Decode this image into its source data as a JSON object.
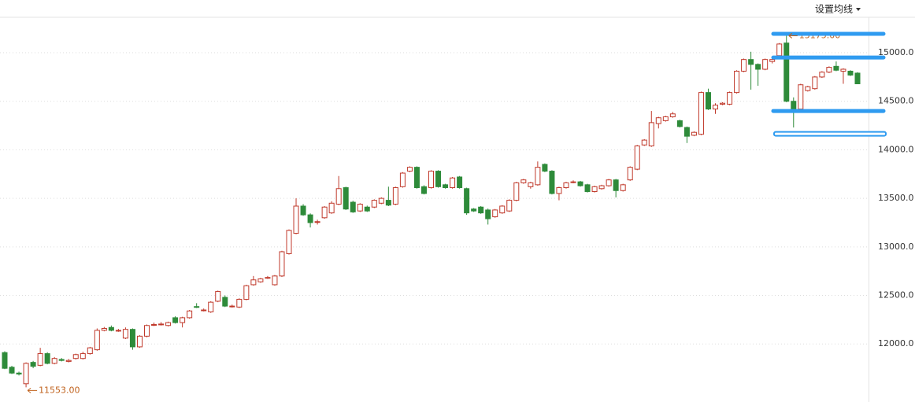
{
  "chart_data": {
    "type": "candlestick",
    "menu_button": "设置均线",
    "low_annotation": "11553.00",
    "high_annotation": "15175.00",
    "up_color": "#c0392b",
    "down_color": "#2e8b3a",
    "line_color": "#2f9bf0",
    "ylim": [
      11410,
      15365
    ],
    "yticks": [
      {
        "value": 12000,
        "label": "12000.0"
      },
      {
        "value": 12500,
        "label": "12500.0"
      },
      {
        "value": 13000,
        "label": "13000.0"
      },
      {
        "value": 13500,
        "label": "13500.0"
      },
      {
        "value": 14000,
        "label": "14000.0"
      },
      {
        "value": 14500,
        "label": "14500.0"
      },
      {
        "value": 15000,
        "label": "15000.0"
      }
    ],
    "grid": true,
    "drawn_lines": [
      15195,
      14951,
      14400,
      14165
    ],
    "ohlc": [
      [
        11911,
        11925,
        11740,
        11749
      ],
      [
        11760,
        11775,
        11690,
        11700
      ],
      [
        11700,
        11715,
        11675,
        11690
      ],
      [
        11590,
        11810,
        11553,
        11800
      ],
      [
        11810,
        11825,
        11750,
        11770
      ],
      [
        11780,
        11960,
        11770,
        11900
      ],
      [
        11900,
        11915,
        11790,
        11800
      ],
      [
        11800,
        11865,
        11790,
        11850
      ],
      [
        11840,
        11855,
        11820,
        11830
      ],
      [
        11820,
        11845,
        11810,
        11830
      ],
      [
        11850,
        11900,
        11840,
        11890
      ],
      [
        11850,
        11920,
        11840,
        11900
      ],
      [
        11900,
        11970,
        11890,
        11960
      ],
      [
        11940,
        12160,
        11930,
        12140
      ],
      [
        12140,
        12175,
        12130,
        12160
      ],
      [
        12170,
        12190,
        12130,
        12140
      ],
      [
        12140,
        12155,
        12125,
        12140
      ],
      [
        12060,
        12170,
        12050,
        12150
      ],
      [
        12150,
        12160,
        11940,
        11970
      ],
      [
        11970,
        12090,
        11960,
        12080
      ],
      [
        12080,
        12200,
        12070,
        12190
      ],
      [
        12200,
        12220,
        12185,
        12200
      ],
      [
        12205,
        12225,
        12190,
        12205
      ],
      [
        12190,
        12230,
        12180,
        12220
      ],
      [
        12270,
        12285,
        12210,
        12220
      ],
      [
        12220,
        12280,
        12170,
        12270
      ],
      [
        12270,
        12350,
        12260,
        12340
      ],
      [
        12385,
        12420,
        12370,
        12380
      ],
      [
        12350,
        12365,
        12335,
        12350
      ],
      [
        12330,
        12440,
        12320,
        12430
      ],
      [
        12440,
        12550,
        12430,
        12540
      ],
      [
        12480,
        12500,
        12380,
        12390
      ],
      [
        12385,
        12405,
        12375,
        12390
      ],
      [
        12380,
        12470,
        12370,
        12460
      ],
      [
        12460,
        12610,
        12450,
        12600
      ],
      [
        12610,
        12700,
        12600,
        12660
      ],
      [
        12640,
        12680,
        12630,
        12670
      ],
      [
        12680,
        12700,
        12670,
        12685
      ],
      [
        12610,
        12710,
        12600,
        12700
      ],
      [
        12700,
        12960,
        12690,
        12950
      ],
      [
        12930,
        13180,
        12920,
        13170
      ],
      [
        13140,
        13500,
        13130,
        13420
      ],
      [
        13420,
        13440,
        13320,
        13330
      ],
      [
        13330,
        13345,
        13200,
        13250
      ],
      [
        13260,
        13280,
        13230,
        13260
      ],
      [
        13300,
        13420,
        13290,
        13410
      ],
      [
        13350,
        13470,
        13340,
        13450
      ],
      [
        13440,
        13730,
        13430,
        13600
      ],
      [
        13610,
        13620,
        13380,
        13390
      ],
      [
        13460,
        13475,
        13350,
        13360
      ],
      [
        13370,
        13450,
        13360,
        13440
      ],
      [
        13410,
        13425,
        13360,
        13370
      ],
      [
        13410,
        13490,
        13400,
        13480
      ],
      [
        13450,
        13510,
        13440,
        13500
      ],
      [
        13480,
        13620,
        13420,
        13430
      ],
      [
        13440,
        13620,
        13430,
        13610
      ],
      [
        13620,
        13770,
        13610,
        13760
      ],
      [
        13780,
        13830,
        13770,
        13820
      ],
      [
        13820,
        13830,
        13600,
        13610
      ],
      [
        13620,
        13635,
        13540,
        13550
      ],
      [
        13610,
        13790,
        13600,
        13780
      ],
      [
        13780,
        13790,
        13610,
        13620
      ],
      [
        13640,
        13650,
        13600,
        13610
      ],
      [
        13610,
        13720,
        13600,
        13710
      ],
      [
        13720,
        13730,
        13600,
        13610
      ],
      [
        13600,
        13610,
        13330,
        13350
      ],
      [
        13390,
        13400,
        13360,
        13370
      ],
      [
        13410,
        13420,
        13340,
        13350
      ],
      [
        13380,
        13395,
        13230,
        13290
      ],
      [
        13310,
        13390,
        13300,
        13380
      ],
      [
        13350,
        13430,
        13340,
        13420
      ],
      [
        13370,
        13490,
        13360,
        13480
      ],
      [
        13480,
        13670,
        13470,
        13660
      ],
      [
        13660,
        13700,
        13650,
        13690
      ],
      [
        13620,
        13670,
        13600,
        13660
      ],
      [
        13640,
        13880,
        13630,
        13820
      ],
      [
        13850,
        13860,
        13770,
        13780
      ],
      [
        13780,
        13790,
        13540,
        13550
      ],
      [
        13550,
        13620,
        13480,
        13610
      ],
      [
        13610,
        13670,
        13600,
        13660
      ],
      [
        13670,
        13685,
        13655,
        13670
      ],
      [
        13670,
        13680,
        13620,
        13630
      ],
      [
        13640,
        13650,
        13560,
        13570
      ],
      [
        13570,
        13630,
        13560,
        13620
      ],
      [
        13600,
        13640,
        13590,
        13630
      ],
      [
        13630,
        13700,
        13620,
        13690
      ],
      [
        13690,
        13700,
        13510,
        13580
      ],
      [
        13580,
        13650,
        13570,
        13640
      ],
      [
        13690,
        13830,
        13680,
        13820
      ],
      [
        13800,
        14050,
        13790,
        14040
      ],
      [
        14050,
        14110,
        14040,
        14100
      ],
      [
        14040,
        14400,
        14030,
        14280
      ],
      [
        14270,
        14340,
        14220,
        14330
      ],
      [
        14300,
        14350,
        14290,
        14340
      ],
      [
        14340,
        14390,
        14330,
        14370
      ],
      [
        14300,
        14310,
        14230,
        14240
      ],
      [
        14230,
        14240,
        14070,
        14140
      ],
      [
        14150,
        14190,
        14140,
        14180
      ],
      [
        14160,
        14600,
        14150,
        14590
      ],
      [
        14590,
        14630,
        14410,
        14420
      ],
      [
        14420,
        14480,
        14370,
        14460
      ],
      [
        14470,
        14490,
        14460,
        14480
      ],
      [
        14470,
        14600,
        14460,
        14590
      ],
      [
        14590,
        14820,
        14580,
        14810
      ],
      [
        14810,
        14940,
        14800,
        14930
      ],
      [
        14930,
        15010,
        14620,
        14880
      ],
      [
        14880,
        14890,
        14660,
        14830
      ],
      [
        14830,
        14940,
        14820,
        14930
      ],
      [
        14910,
        14940,
        14890,
        14930
      ],
      [
        14970,
        15100,
        14960,
        15090
      ],
      [
        15100,
        15175,
        14490,
        14500
      ],
      [
        14500,
        14540,
        14230,
        14410
      ],
      [
        14420,
        14680,
        14410,
        14670
      ],
      [
        14610,
        14660,
        14600,
        14650
      ],
      [
        14630,
        14760,
        14620,
        14750
      ],
      [
        14750,
        14810,
        14740,
        14800
      ],
      [
        14800,
        14860,
        14790,
        14850
      ],
      [
        14860,
        14910,
        14810,
        14820
      ],
      [
        14810,
        14840,
        14680,
        14830
      ],
      [
        14810,
        14820,
        14760,
        14770
      ],
      [
        14790,
        14800,
        14680,
        14680
      ]
    ]
  }
}
